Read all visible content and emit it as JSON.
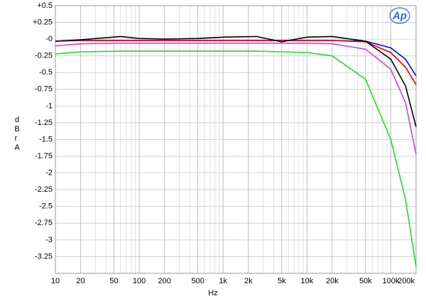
{
  "chart_data": {
    "type": "line",
    "logo": "Ap",
    "xlabel": "Hz",
    "ylabel": "dBr A",
    "xscale": "log",
    "grid": true,
    "x": [
      10,
      20,
      60,
      100,
      200,
      500,
      1000,
      2500,
      5000,
      10000,
      20000,
      50000,
      100000,
      150000,
      200000
    ],
    "series": [
      {
        "name": "blue",
        "color": "#0000ee",
        "values": [
          -0.03,
          -0.02,
          -0.02,
          -0.02,
          -0.02,
          -0.02,
          -0.02,
          -0.02,
          -0.02,
          -0.02,
          -0.02,
          -0.03,
          -0.13,
          -0.3,
          -0.55
        ]
      },
      {
        "name": "red",
        "color": "#e00000",
        "values": [
          -0.03,
          -0.02,
          -0.02,
          -0.02,
          -0.02,
          -0.02,
          -0.02,
          -0.02,
          -0.02,
          -0.02,
          -0.02,
          -0.04,
          -0.2,
          -0.42,
          -0.68
        ]
      },
      {
        "name": "black",
        "color": "#000000",
        "values": [
          -0.03,
          -0.01,
          0.04,
          0.01,
          0.0,
          0.01,
          0.03,
          0.04,
          -0.04,
          0.03,
          0.04,
          -0.03,
          -0.3,
          -0.7,
          -1.31
        ]
      },
      {
        "name": "magenta",
        "color": "#cc44dd",
        "values": [
          -0.1,
          -0.07,
          -0.06,
          -0.06,
          -0.06,
          -0.06,
          -0.06,
          -0.06,
          -0.06,
          -0.06,
          -0.07,
          -0.15,
          -0.45,
          -0.95,
          -1.72
        ]
      },
      {
        "name": "green",
        "color": "#22dd22",
        "values": [
          -0.22,
          -0.19,
          -0.18,
          -0.18,
          -0.18,
          -0.18,
          -0.18,
          -0.18,
          -0.19,
          -0.2,
          -0.25,
          -0.6,
          -1.5,
          -2.4,
          -3.4
        ]
      }
    ],
    "xlim": [
      10,
      200000
    ],
    "xticks": [
      10,
      20,
      50,
      100,
      200,
      500,
      {
        "value": 1000,
        "label": "1k"
      },
      {
        "value": 2000,
        "label": "2k"
      },
      {
        "value": 5000,
        "label": "5k"
      },
      {
        "value": 10000,
        "label": "10k"
      },
      {
        "value": 20000,
        "label": "20k"
      },
      {
        "value": 50000,
        "label": "50k"
      },
      {
        "value": 100000,
        "label": "100k"
      },
      {
        "value": 200000,
        "label": "200k"
      }
    ],
    "ylim": [
      -3.5,
      0.5
    ],
    "yticks": [
      {
        "value": 0.5,
        "label": "+0.5"
      },
      {
        "value": 0.25,
        "label": "+0.25"
      },
      {
        "value": 0,
        "label": "-0"
      },
      -0.25,
      -0.5,
      -0.75,
      -1,
      -1.25,
      -1.5,
      -1.75,
      -2,
      -2.25,
      -2.5,
      -2.75,
      -3,
      -3.25
    ]
  }
}
